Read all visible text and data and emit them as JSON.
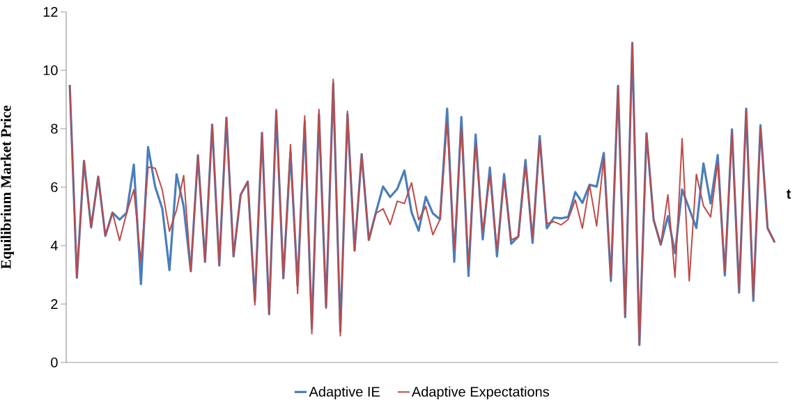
{
  "chart_data": {
    "type": "line",
    "ylabel": "Equilibrium Market Price",
    "xlabel": "t",
    "categories": [
      null,
      null,
      null,
      null,
      null,
      null,
      null,
      null,
      null,
      null,
      null,
      null,
      null,
      null,
      null,
      null,
      null,
      null,
      null,
      null,
      null,
      null,
      null,
      null,
      null,
      null,
      null,
      null,
      null,
      null,
      null,
      null,
      null,
      null,
      null,
      null,
      null,
      null,
      null,
      null,
      null,
      null,
      null,
      null,
      null,
      null,
      null,
      null,
      null,
      null,
      null,
      null,
      null,
      null,
      null,
      null,
      null,
      null,
      null,
      null,
      null,
      null,
      null,
      null,
      null,
      null,
      null,
      null,
      null,
      null,
      null,
      null,
      null,
      null,
      null,
      null,
      null,
      null,
      null,
      null,
      null,
      null,
      null,
      null,
      null,
      null,
      null,
      null,
      null,
      null,
      null,
      null,
      null,
      null,
      null,
      null,
      null,
      null,
      null,
      null
    ],
    "ylim": [
      0,
      12
    ],
    "yticks": [
      0,
      2,
      4,
      6,
      8,
      10,
      12
    ],
    "grid": false,
    "legend": "bottom",
    "marker": "none",
    "series": [
      {
        "name": "Adaptive IE",
        "color": "#4a7ebb",
        "values": [
          9.5,
          2.9,
          6.9,
          4.62,
          6.36,
          4.33,
          5.13,
          4.89,
          5.13,
          6.77,
          2.68,
          7.37,
          6.01,
          5.26,
          3.16,
          6.44,
          5.34,
          3.12,
          7.09,
          3.44,
          8.14,
          3.32,
          8.38,
          3.63,
          5.74,
          6.19,
          2.1,
          7.86,
          1.65,
          8.6,
          2.88,
          7.2,
          2.64,
          8.24,
          1.17,
          8.5,
          1.9,
          9.55,
          1.06,
          8.5,
          3.83,
          7.13,
          4.19,
          5.14,
          6.02,
          5.66,
          5.94,
          6.57,
          5.14,
          4.51,
          5.67,
          5.1,
          4.9,
          8.69,
          3.45,
          8.4,
          2.96,
          7.8,
          4.21,
          6.67,
          3.63,
          6.45,
          4.06,
          4.31,
          6.93,
          4.09,
          7.75,
          4.59,
          4.96,
          4.93,
          4.98,
          5.83,
          5.46,
          6.08,
          6.02,
          7.17,
          2.79,
          9.47,
          1.55,
          10.94,
          0.6,
          7.84,
          4.88,
          4.03,
          5.01,
          3.74,
          5.92,
          5.26,
          4.6,
          6.81,
          5.44,
          7.1,
          2.98,
          7.98,
          2.39,
          8.69,
          2.11,
          8.12,
          4.6,
          4.11
        ]
      },
      {
        "name": "Adaptive Expectations",
        "color": "#be4b48",
        "values": [
          9.5,
          2.9,
          6.9,
          4.62,
          6.36,
          4.33,
          5.13,
          4.17,
          5.13,
          5.91,
          3.44,
          6.69,
          6.65,
          5.9,
          4.49,
          5.22,
          6.4,
          3.12,
          7.09,
          3.44,
          8.14,
          3.32,
          8.38,
          3.63,
          5.74,
          6.19,
          1.97,
          7.86,
          1.65,
          8.66,
          2.88,
          7.46,
          2.36,
          8.44,
          0.99,
          8.66,
          1.85,
          9.69,
          0.91,
          8.6,
          3.83,
          7.13,
          4.19,
          5.1,
          5.26,
          4.72,
          5.52,
          5.44,
          6.15,
          4.88,
          5.34,
          4.37,
          4.9,
          8.21,
          3.87,
          8.04,
          3.32,
          7.5,
          4.48,
          6.41,
          3.87,
          6.25,
          4.19,
          4.31,
          6.73,
          4.29,
          7.6,
          4.75,
          4.82,
          4.71,
          4.9,
          5.56,
          4.59,
          6.08,
          4.67,
          7.01,
          2.92,
          9.47,
          1.6,
          10.94,
          0.6,
          7.84,
          4.88,
          4.03,
          5.74,
          2.92,
          7.66,
          2.79,
          6.44,
          5.36,
          4.98,
          6.85,
          3.12,
          7.9,
          2.48,
          8.6,
          2.25,
          8.04,
          4.6,
          4.11
        ]
      }
    ]
  }
}
